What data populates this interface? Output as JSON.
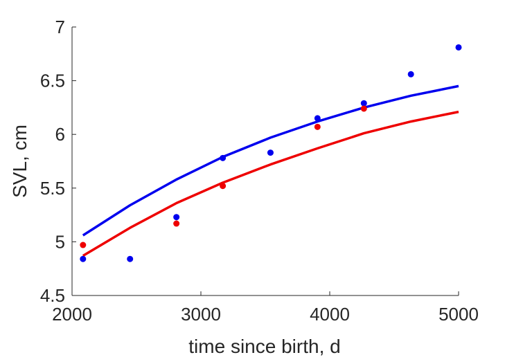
{
  "chart_data": {
    "type": "scatter",
    "xlabel": "time since birth, d",
    "ylabel": "SVL, cm",
    "xlim": [
      2000,
      5000
    ],
    "ylim": [
      4.5,
      7
    ],
    "xticks": [
      2000,
      3000,
      4000,
      5000
    ],
    "yticks": [
      4.5,
      5,
      5.5,
      6,
      6.5,
      7
    ],
    "xtick_labels": [
      "2000",
      "3000",
      "4000",
      "5000"
    ],
    "ytick_labels": [
      "4.5",
      "5",
      "5.5",
      "6",
      "6.5",
      "7"
    ],
    "grid": false,
    "series": [
      {
        "type": "scatter",
        "color": "#0000ee",
        "x": [
          2085,
          2450,
          2810,
          3170,
          3540,
          3905,
          4265,
          4630,
          5000
        ],
        "y": [
          4.84,
          4.84,
          5.23,
          5.78,
          5.83,
          6.15,
          6.29,
          6.56,
          6.81
        ]
      },
      {
        "type": "scatter",
        "color": "#ee0000",
        "x": [
          2085,
          2810,
          3170,
          3905,
          4265
        ],
        "y": [
          4.97,
          5.17,
          5.52,
          6.07,
          6.24
        ]
      },
      {
        "type": "line",
        "color": "#0000ee",
        "x": [
          2085,
          2450,
          2810,
          3170,
          3540,
          3905,
          4265,
          4630,
          5000
        ],
        "y": [
          5.06,
          5.34,
          5.58,
          5.79,
          5.97,
          6.12,
          6.25,
          6.36,
          6.45
        ]
      },
      {
        "type": "line",
        "color": "#ee0000",
        "x": [
          2085,
          2450,
          2810,
          3170,
          3540,
          3905,
          4265,
          4630,
          5000
        ],
        "y": [
          4.87,
          5.13,
          5.36,
          5.55,
          5.72,
          5.87,
          6.01,
          6.12,
          6.21
        ]
      }
    ]
  }
}
